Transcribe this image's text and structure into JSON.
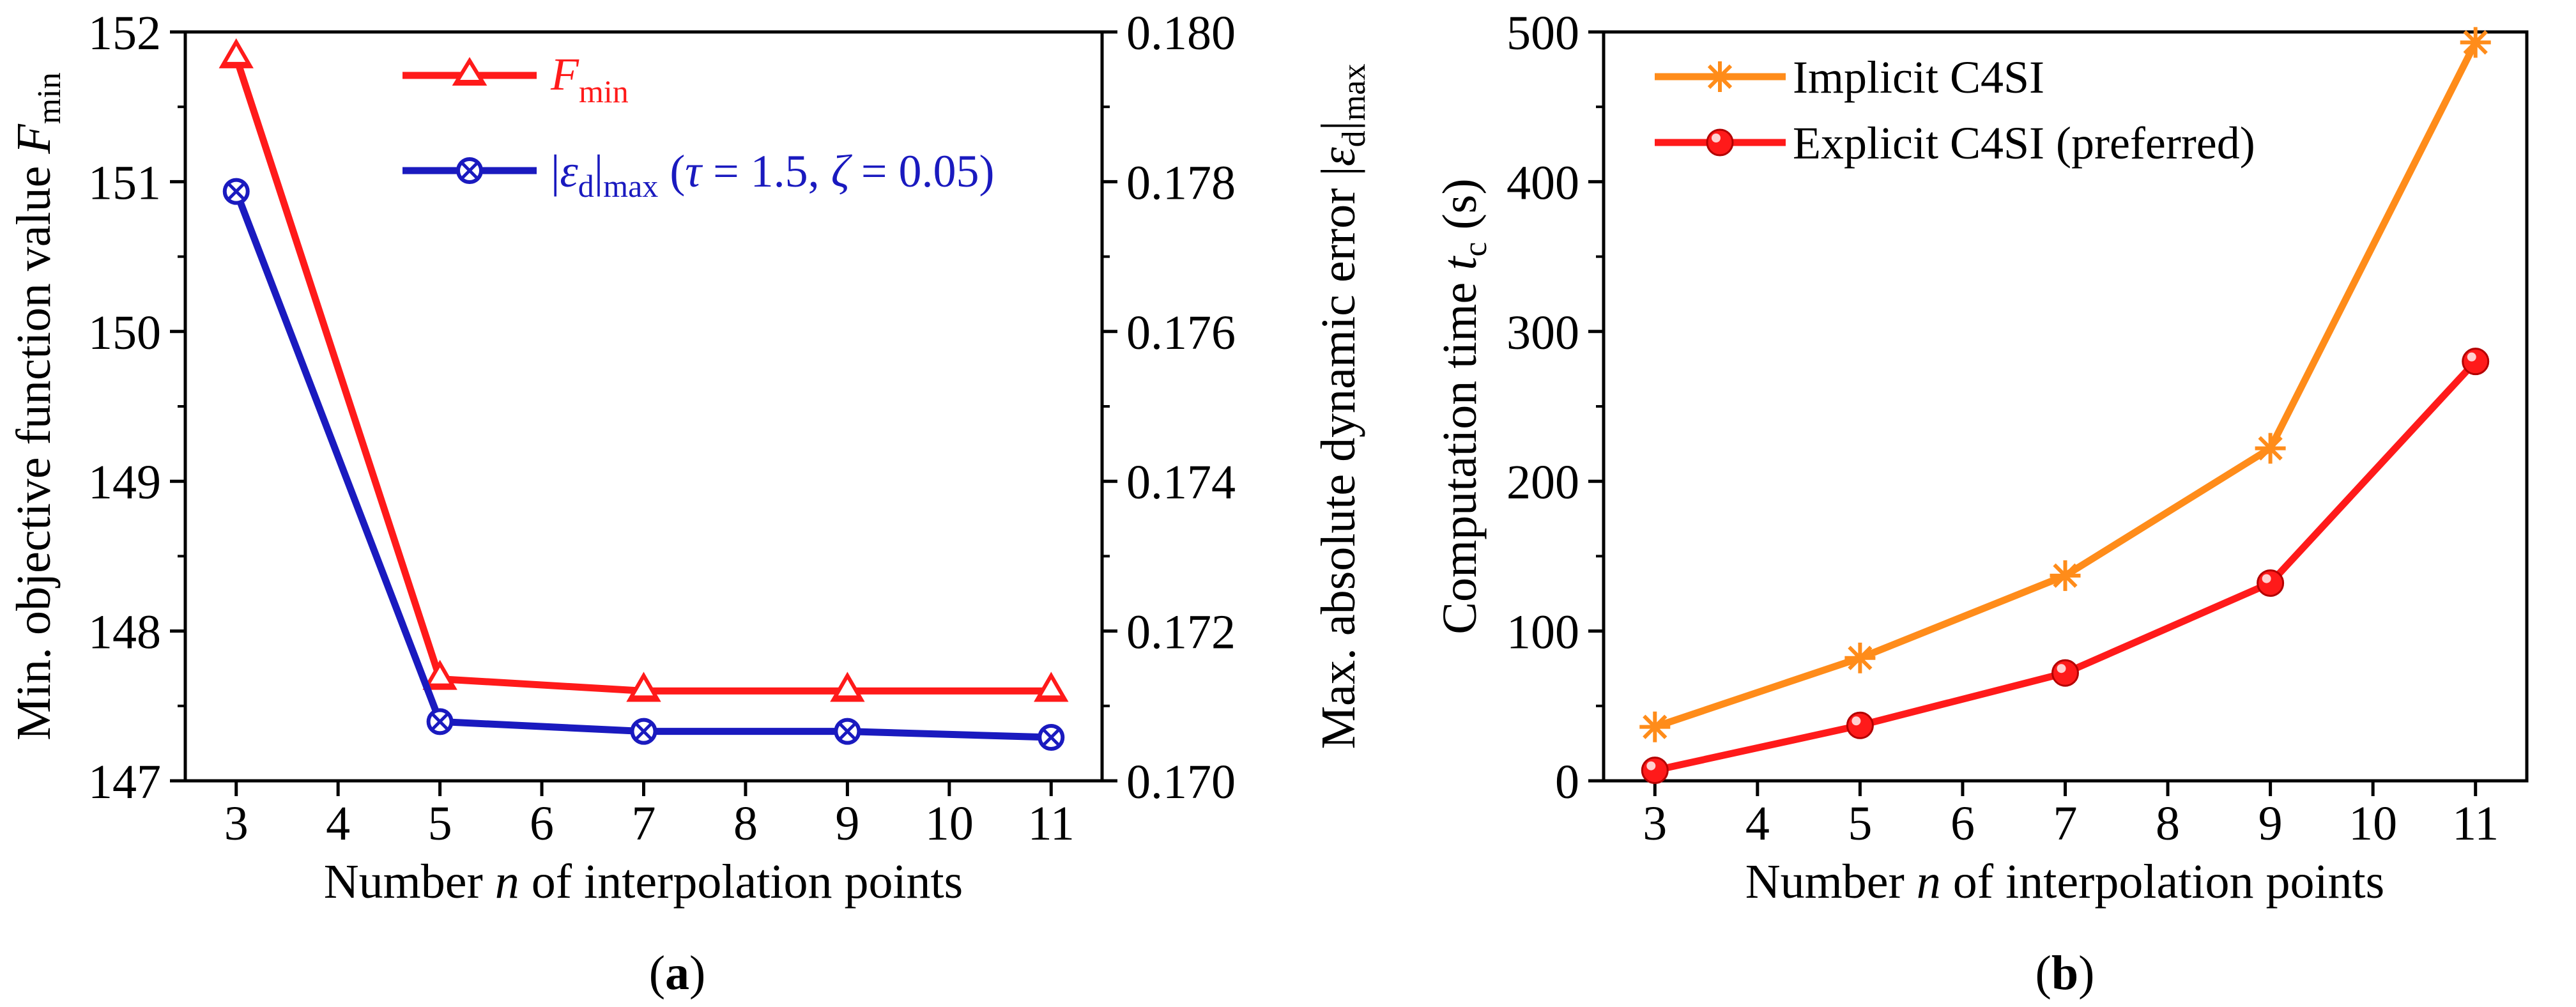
{
  "colors": {
    "red": "#ff1a1a",
    "blue": "#1a1abf",
    "orange": "#ff8c1a",
    "axis": "#000000"
  },
  "chart_data": [
    {
      "type": "line",
      "panel_label": "(a)",
      "xlabel": "Number n of interpolation points",
      "ylabel_left": "Min. objective function value F_min",
      "ylabel_right": "Max. absolute dynamic error |ε_d|_max",
      "xlim": [
        2.5,
        11.5
      ],
      "ylim_left": [
        147,
        152
      ],
      "ylim_right": [
        0.17,
        0.18
      ],
      "x_ticks": [
        "3",
        "4",
        "5",
        "6",
        "7",
        "8",
        "9",
        "10",
        "11"
      ],
      "y_ticks_left": [
        "147",
        "148",
        "149",
        "150",
        "151",
        "152"
      ],
      "y_ticks_right": [
        "0.170",
        "0.172",
        "0.174",
        "0.176",
        "0.178",
        "0.180"
      ],
      "legend_position": "top-center",
      "series": [
        {
          "name": "F_min",
          "axis": "left",
          "marker": "triangle",
          "color": "#ff1a1a",
          "x": [
            3,
            5,
            7,
            9,
            11
          ],
          "y": [
            151.83,
            147.68,
            147.6,
            147.6,
            147.6
          ]
        },
        {
          "name": "|ε_d|_max (τ = 1.5, ζ = 0.05)",
          "axis": "right",
          "marker": "circle-x",
          "color": "#1a1abf",
          "x": [
            3,
            5,
            7,
            9,
            11
          ],
          "y": [
            0.17787,
            0.17079,
            0.17066,
            0.17066,
            0.17058
          ]
        }
      ]
    },
    {
      "type": "line",
      "panel_label": "(b)",
      "xlabel": "Number n of interpolation points",
      "ylabel": "Computation time t_c (s)",
      "xlim": [
        2.5,
        11.5
      ],
      "ylim": [
        0,
        500
      ],
      "x_ticks": [
        "3",
        "4",
        "5",
        "6",
        "7",
        "8",
        "9",
        "10",
        "11"
      ],
      "y_ticks": [
        "0",
        "100",
        "200",
        "300",
        "400",
        "500"
      ],
      "legend_position": "top-left",
      "series": [
        {
          "name": "Implicit C4SI",
          "marker": "asterisk",
          "color": "#ff8c1a",
          "x": [
            3,
            5,
            7,
            9,
            11
          ],
          "y": [
            36,
            82,
            137,
            222,
            493
          ]
        },
        {
          "name": "Explicit C4SI (preferred)",
          "marker": "ball",
          "color": "#ff1a1a",
          "x": [
            3,
            5,
            7,
            9,
            11
          ],
          "y": [
            7,
            37,
            72,
            132,
            280
          ]
        }
      ]
    }
  ],
  "text": {
    "a": {
      "xlabel_pre": "Number ",
      "xlabel_var": "n",
      "xlabel_post": " of interpolation points",
      "ylabel_left_pre": "Min. objective function value ",
      "ylabel_left_var": "F",
      "ylabel_left_sub": "min",
      "ylabel_right_pre": "Max. absolute dynamic error |",
      "ylabel_right_var": "ε",
      "ylabel_right_sub1": "d",
      "ylabel_right_mid": "|",
      "ylabel_right_sub2": "max",
      "legend1_var": "F",
      "legend1_sub": "min",
      "legend2_pre": "|",
      "legend2_var": "ε",
      "legend2_sub1": "d",
      "legend2_mid": "|",
      "legend2_sub2": "max",
      "legend2_open": " (",
      "legend2_tau": "τ",
      "legend2_eq1": " = 1.5, ",
      "legend2_zeta": "ζ",
      "legend2_eq2": " = 0.05)",
      "panel_open": "(",
      "panel_letter": "a",
      "panel_close": ")"
    },
    "b": {
      "xlabel_pre": "Number ",
      "xlabel_var": "n",
      "xlabel_post": " of interpolation points",
      "ylabel_pre": "Computation time ",
      "ylabel_var": "t",
      "ylabel_sub": "c",
      "ylabel_post": " (s)",
      "legend1": "Implicit C4SI",
      "legend2": "Explicit C4SI (preferred)",
      "panel_open": "(",
      "panel_letter": "b",
      "panel_close": ")"
    }
  }
}
